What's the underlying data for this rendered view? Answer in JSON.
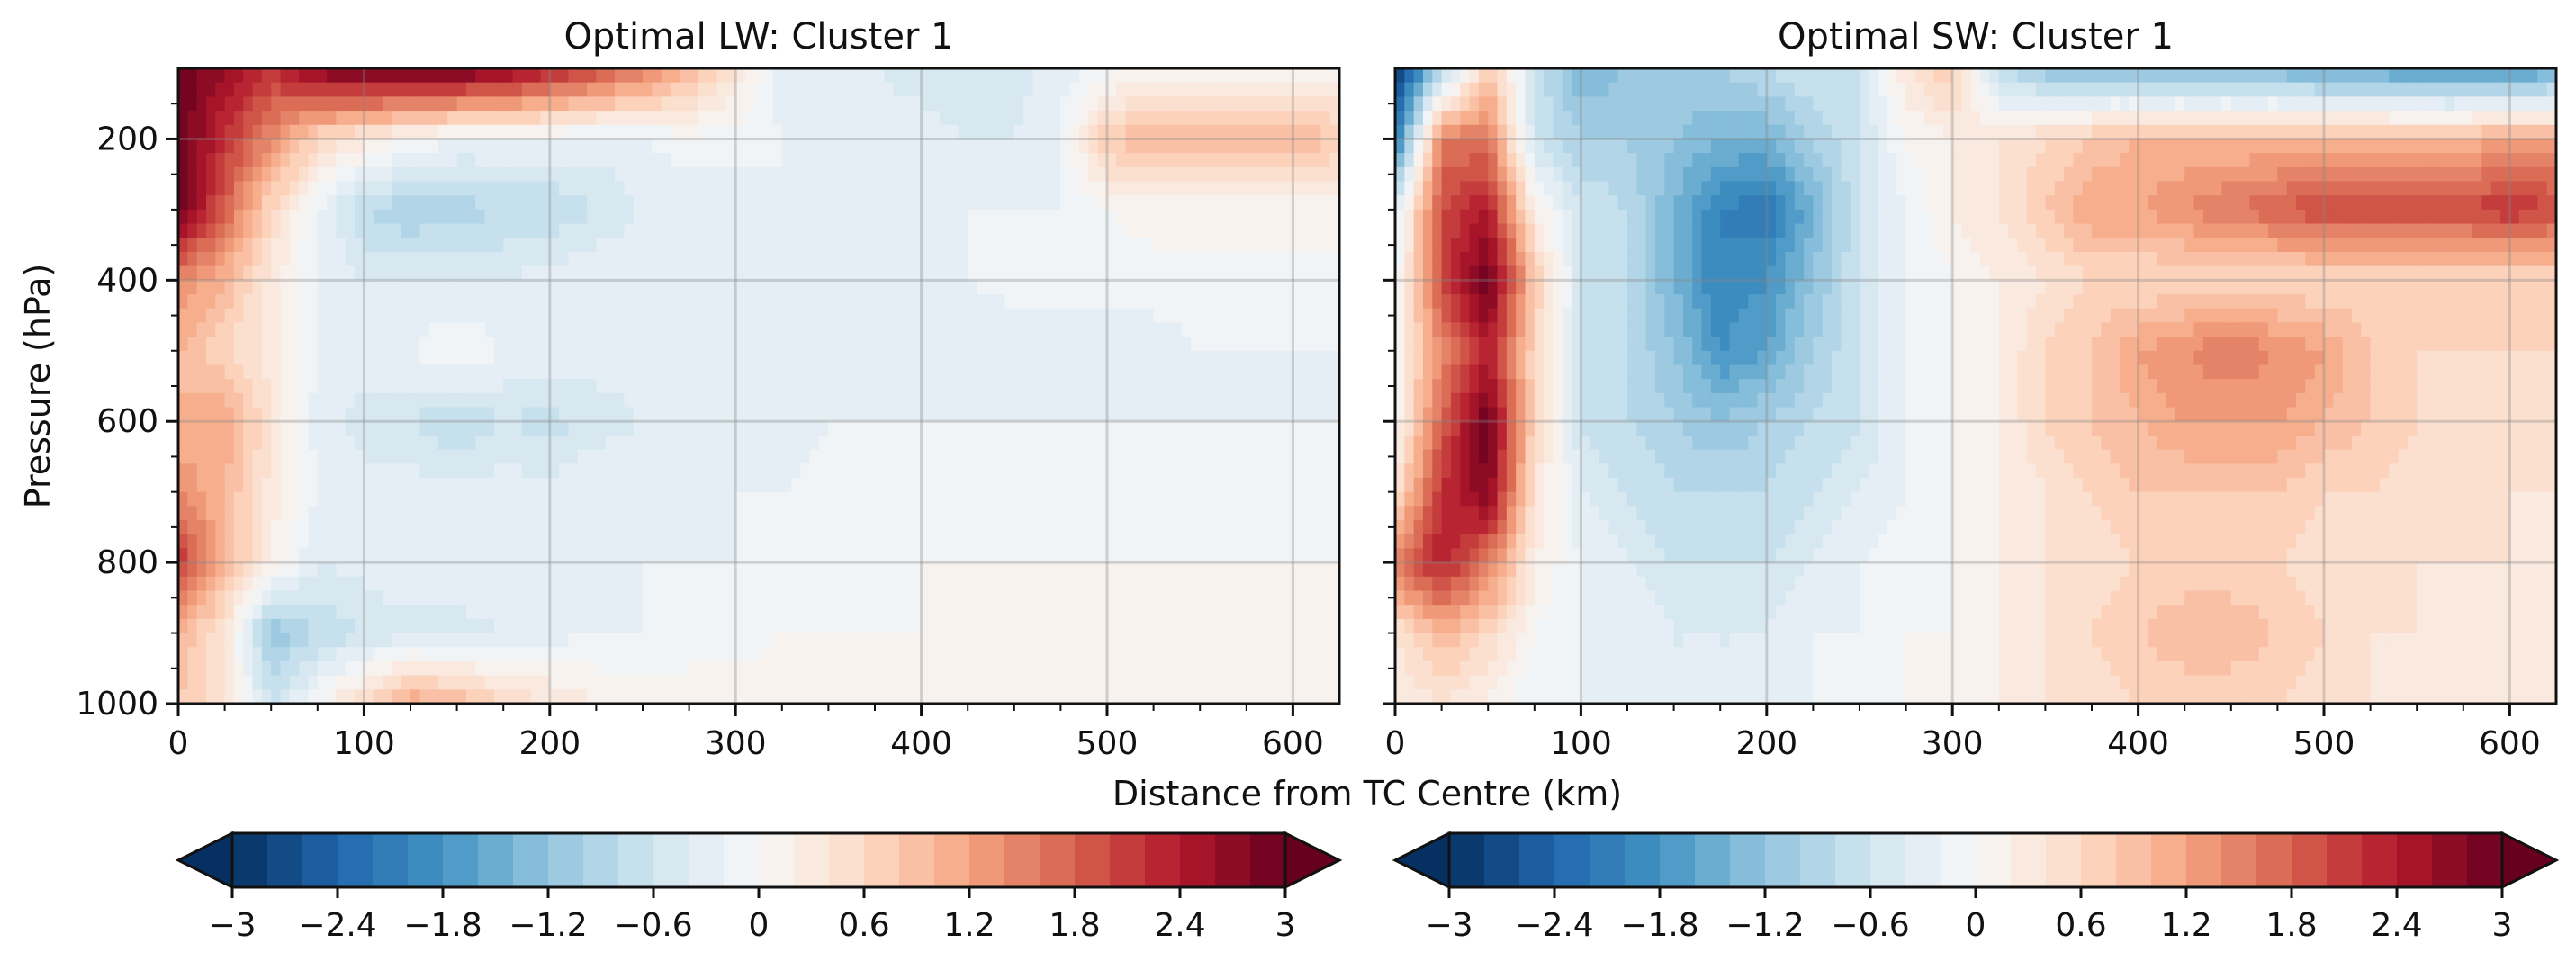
{
  "chart_data": [
    {
      "type": "heatmap",
      "title": "Optimal LW: Cluster 1",
      "xlabel": "Distance from TC Centre (km)",
      "ylabel": "Pressure (hPa)",
      "xlim": [
        0,
        625
      ],
      "ylim": [
        1000,
        100
      ],
      "xticks": [
        0,
        100,
        200,
        300,
        400,
        500,
        600
      ],
      "yticks": [
        200,
        400,
        600,
        800,
        1000
      ],
      "x": [
        0,
        25,
        50,
        75,
        100,
        125,
        150,
        175,
        200,
        225,
        250,
        275,
        300,
        325,
        350,
        375,
        400,
        425,
        450,
        475,
        500,
        525,
        550,
        575,
        600,
        625
      ],
      "y": [
        100,
        200,
        300,
        400,
        500,
        600,
        700,
        800,
        900,
        1000
      ],
      "z": [
        [
          3.0,
          2.6,
          2.2,
          2.8,
          3.0,
          3.0,
          3.0,
          2.8,
          2.4,
          2.0,
          1.6,
          1.0,
          0.4,
          -0.3,
          -0.4,
          -0.4,
          -0.5,
          -0.6,
          -0.5,
          -0.3,
          -0.1,
          0.0,
          0.1,
          0.0,
          0.0,
          0.0
        ],
        [
          3.0,
          2.2,
          1.4,
          0.6,
          0.3,
          0.0,
          -0.2,
          -0.2,
          -0.2,
          -0.3,
          -0.2,
          -0.1,
          -0.1,
          -0.2,
          -0.2,
          -0.3,
          -0.3,
          -0.4,
          -0.4,
          -0.2,
          0.8,
          1.0,
          1.0,
          1.0,
          1.0,
          0.8
        ],
        [
          3.0,
          1.8,
          0.6,
          -0.2,
          -0.8,
          -1.0,
          -0.9,
          -0.8,
          -0.8,
          -0.6,
          -0.4,
          -0.3,
          -0.3,
          -0.2,
          -0.2,
          -0.2,
          -0.2,
          -0.2,
          -0.2,
          -0.2,
          0.0,
          0.1,
          0.1,
          0.1,
          0.1,
          0.0
        ],
        [
          1.4,
          1.0,
          0.3,
          -0.2,
          -0.4,
          -0.4,
          -0.4,
          -0.4,
          -0.3,
          -0.2,
          -0.2,
          -0.2,
          -0.2,
          -0.2,
          -0.2,
          -0.2,
          -0.2,
          -0.2,
          -0.1,
          -0.1,
          -0.1,
          -0.1,
          -0.1,
          -0.1,
          -0.1,
          0.0
        ],
        [
          1.0,
          0.6,
          0.3,
          -0.2,
          -0.3,
          -0.2,
          0.0,
          -0.2,
          -0.2,
          -0.3,
          -0.3,
          -0.3,
          -0.3,
          -0.3,
          -0.3,
          -0.3,
          -0.3,
          -0.4,
          -0.4,
          -0.3,
          -0.3,
          -0.3,
          -0.2,
          -0.2,
          -0.2,
          -0.2
        ],
        [
          1.0,
          1.2,
          0.4,
          -0.3,
          -0.5,
          -0.6,
          -0.8,
          -0.6,
          -0.7,
          -0.5,
          -0.4,
          -0.3,
          -0.3,
          -0.3,
          -0.2,
          -0.2,
          -0.2,
          -0.2,
          -0.2,
          -0.2,
          -0.2,
          -0.2,
          -0.2,
          -0.2,
          -0.2,
          -0.2
        ],
        [
          1.4,
          1.0,
          0.3,
          -0.2,
          -0.3,
          -0.3,
          -0.3,
          -0.3,
          -0.3,
          -0.2,
          -0.2,
          -0.2,
          -0.2,
          -0.2,
          -0.1,
          -0.1,
          -0.1,
          -0.1,
          -0.1,
          -0.1,
          -0.1,
          -0.1,
          -0.1,
          -0.1,
          -0.1,
          -0.1
        ],
        [
          2.2,
          1.0,
          0.2,
          -0.4,
          -0.3,
          -0.2,
          -0.2,
          -0.2,
          -0.2,
          -0.2,
          -0.2,
          -0.2,
          -0.2,
          -0.1,
          -0.1,
          -0.1,
          0.0,
          0.0,
          0.0,
          0.0,
          0.0,
          0.0,
          0.0,
          0.0,
          0.0,
          0.0
        ],
        [
          1.0,
          0.4,
          -1.2,
          -0.8,
          -0.6,
          -0.5,
          -0.5,
          -0.4,
          -0.3,
          -0.2,
          -0.2,
          -0.1,
          -0.1,
          0.0,
          0.0,
          0.0,
          0.0,
          0.1,
          0.1,
          0.1,
          0.1,
          0.1,
          0.1,
          0.1,
          0.0,
          0.1
        ],
        [
          0.8,
          0.4,
          -0.6,
          0.0,
          0.6,
          1.2,
          1.0,
          0.6,
          0.4,
          0.2,
          0.1,
          0.1,
          0.1,
          0.1,
          0.1,
          0.1,
          0.1,
          0.1,
          0.1,
          0.1,
          0.1,
          0.1,
          0.1,
          0.1,
          0.1,
          0.1
        ]
      ],
      "colorbar": {
        "ticks": [
          -3,
          -2.4,
          -1.8,
          -1.2,
          -0.6,
          0,
          0.6,
          1.2,
          1.8,
          2.4,
          3
        ],
        "tick_labels": [
          "−3",
          "−2.4",
          "−1.8",
          "−1.2",
          "−0.6",
          "0",
          "0.6",
          "1.2",
          "1.8",
          "2.4",
          "3"
        ],
        "extend": "both",
        "cmap": "RdBu_r"
      },
      "grid": true
    },
    {
      "type": "heatmap",
      "title": "Optimal SW: Cluster 1",
      "xlabel": "Distance from TC Centre (km)",
      "ylabel": "",
      "xlim": [
        0,
        625
      ],
      "ylim": [
        1000,
        100
      ],
      "xticks": [
        0,
        100,
        200,
        300,
        400,
        500,
        600
      ],
      "yticks": [
        200,
        400,
        600,
        800,
        1000
      ],
      "x": [
        0,
        25,
        50,
        75,
        100,
        125,
        150,
        175,
        200,
        225,
        250,
        275,
        300,
        325,
        350,
        375,
        400,
        425,
        450,
        475,
        500,
        525,
        550,
        575,
        600,
        625
      ],
      "y": [
        100,
        200,
        300,
        400,
        500,
        600,
        700,
        800,
        900,
        1000
      ],
      "z": [
        [
          -3.0,
          -1.0,
          0.8,
          -0.6,
          -1.4,
          -1.2,
          -1.0,
          -1.0,
          -0.8,
          -0.6,
          -0.6,
          0.4,
          0.8,
          -0.8,
          -1.2,
          -1.2,
          -1.4,
          -1.4,
          -1.4,
          -1.4,
          -1.6,
          -1.6,
          -1.8,
          -1.8,
          -1.8,
          -1.6
        ],
        [
          -2.2,
          1.6,
          1.6,
          -0.6,
          -1.0,
          -1.0,
          -1.2,
          -1.4,
          -1.4,
          -1.0,
          -0.6,
          0.0,
          0.2,
          0.4,
          0.6,
          0.8,
          1.0,
          1.0,
          1.0,
          1.0,
          1.0,
          1.0,
          1.0,
          1.0,
          1.2,
          1.2
        ],
        [
          -0.4,
          2.0,
          2.4,
          0.2,
          -0.6,
          -0.8,
          -1.4,
          -2.0,
          -2.2,
          -1.4,
          -0.6,
          -0.2,
          0.2,
          0.4,
          0.8,
          1.2,
          1.2,
          1.4,
          1.6,
          1.8,
          2.0,
          2.0,
          2.0,
          2.0,
          2.2,
          2.0
        ],
        [
          -0.2,
          2.0,
          3.0,
          0.8,
          -0.6,
          -0.8,
          -1.4,
          -2.0,
          -1.8,
          -1.2,
          -0.6,
          -0.2,
          0.0,
          0.2,
          0.4,
          0.6,
          0.6,
          0.6,
          0.6,
          0.6,
          0.6,
          0.6,
          0.6,
          0.6,
          0.6,
          0.6
        ],
        [
          0.0,
          1.4,
          2.4,
          0.6,
          -0.6,
          -0.8,
          -1.2,
          -1.8,
          -1.6,
          -1.0,
          -0.6,
          -0.2,
          0.0,
          0.2,
          0.6,
          0.8,
          1.2,
          1.4,
          1.6,
          1.4,
          1.2,
          0.8,
          0.6,
          0.6,
          0.6,
          0.6
        ],
        [
          0.0,
          1.8,
          3.0,
          0.6,
          -0.6,
          -0.8,
          -1.0,
          -1.2,
          -1.0,
          -0.8,
          -0.6,
          -0.2,
          0.0,
          0.2,
          0.6,
          0.8,
          1.0,
          1.2,
          1.2,
          1.2,
          1.0,
          0.8,
          0.6,
          0.4,
          0.4,
          0.4
        ],
        [
          0.4,
          2.2,
          2.8,
          0.4,
          -0.4,
          -0.6,
          -0.8,
          -0.8,
          -0.8,
          -0.6,
          -0.4,
          -0.2,
          0.0,
          0.2,
          0.4,
          0.6,
          0.8,
          0.8,
          0.8,
          0.8,
          0.6,
          0.6,
          0.4,
          0.4,
          0.4,
          0.4
        ],
        [
          1.6,
          2.4,
          1.6,
          0.2,
          -0.2,
          -0.4,
          -0.6,
          -0.6,
          -0.6,
          -0.4,
          -0.2,
          -0.1,
          0.0,
          0.2,
          0.4,
          0.4,
          0.6,
          0.6,
          0.6,
          0.6,
          0.4,
          0.4,
          0.4,
          0.4,
          0.4,
          0.2
        ],
        [
          0.4,
          1.0,
          0.6,
          0.0,
          -0.2,
          -0.2,
          -0.4,
          -0.4,
          -0.4,
          -0.2,
          -0.2,
          0.0,
          0.0,
          0.2,
          0.4,
          0.6,
          0.8,
          1.0,
          1.0,
          0.8,
          0.6,
          0.4,
          0.4,
          0.2,
          0.2,
          0.2
        ],
        [
          0.2,
          0.4,
          0.2,
          -0.2,
          -0.2,
          -0.2,
          -0.4,
          -0.4,
          -0.4,
          -0.2,
          -0.1,
          0.0,
          0.0,
          0.2,
          0.4,
          0.4,
          0.6,
          0.6,
          0.6,
          0.6,
          0.4,
          0.4,
          0.2,
          0.2,
          0.2,
          0.2
        ]
      ],
      "colorbar": {
        "ticks": [
          -3,
          -2.4,
          -1.8,
          -1.2,
          -0.6,
          0,
          0.6,
          1.2,
          1.8,
          2.4,
          3
        ],
        "tick_labels": [
          "−3",
          "−2.4",
          "−1.8",
          "−1.2",
          "−0.6",
          "0",
          "0.6",
          "1.2",
          "1.8",
          "2.4",
          "3"
        ],
        "extend": "both",
        "cmap": "RdBu_r"
      },
      "grid": true
    }
  ],
  "colors": {
    "palette_rdbu_r": [
      "#053061",
      "#2166ac",
      "#4393c3",
      "#92c5de",
      "#d1e5f0",
      "#f7f7f7",
      "#fddbc7",
      "#f4a582",
      "#d6604d",
      "#b2182b",
      "#67001f"
    ],
    "axis": "#111111",
    "grid": "#888888"
  }
}
